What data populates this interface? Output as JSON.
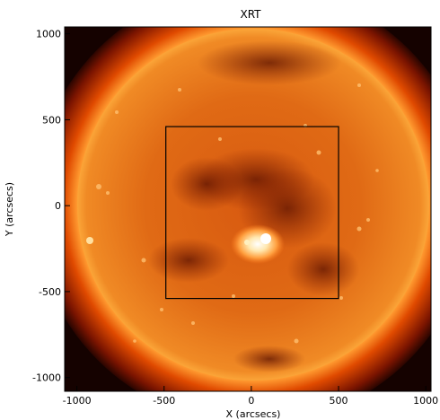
{
  "title": "XRT",
  "x_axis": {
    "label": "X (arcsecs)",
    "ticks": [
      {
        "value": -1000,
        "label": "-1000"
      },
      {
        "value": -500,
        "label": "-500"
      },
      {
        "value": 0,
        "label": "0"
      },
      {
        "value": 500,
        "label": "500"
      },
      {
        "value": 1000,
        "label": "1000"
      }
    ],
    "range": [
      -1070,
      1030
    ]
  },
  "y_axis": {
    "label": "Y (arcsecs)",
    "ticks": [
      {
        "value": 1000,
        "label": "1000"
      },
      {
        "value": 500,
        "label": "500"
      },
      {
        "value": 0,
        "label": "0"
      },
      {
        "value": -500,
        "label": "-500"
      },
      {
        "value": -1000,
        "label": "-1000"
      }
    ],
    "range": [
      -1080,
      1040
    ]
  },
  "field_of_view_box": {
    "x_min": -490,
    "x_max": 500,
    "y_min": -540,
    "y_max": 460
  },
  "solar_disk": {
    "center": [
      0,
      0
    ],
    "radius_arcsec": 975
  },
  "colors": {
    "corona": "#ff6a00",
    "disk_bright": "#f08020",
    "background": "#150200",
    "box": "#000000"
  }
}
